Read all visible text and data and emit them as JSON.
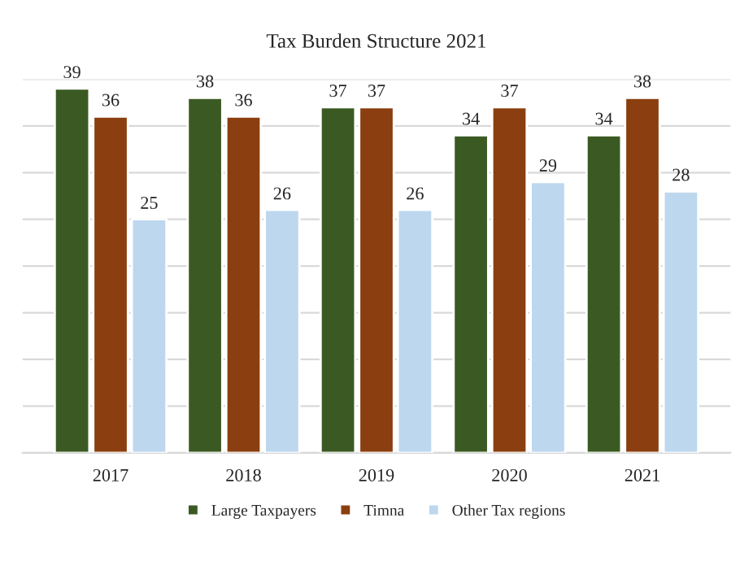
{
  "chart_data": {
    "type": "bar",
    "title": "Tax Burden Structure 2021",
    "categories": [
      "2017",
      "2018",
      "2019",
      "2020",
      "2021"
    ],
    "series": [
      {
        "name": "Large Taxpayers",
        "color": "#3b5a23",
        "values": [
          39,
          38,
          37,
          34,
          34
        ]
      },
      {
        "name": "Timna",
        "color": "#8b3e0f",
        "values": [
          36,
          36,
          37,
          37,
          38
        ]
      },
      {
        "name": "Other Tax regions",
        "color": "#bdd7ee",
        "values": [
          25,
          26,
          26,
          29,
          28
        ]
      }
    ],
    "ylim": [
      0,
      40
    ],
    "yticks": [
      {
        "value": 0,
        "label": null
      },
      {
        "value": 5,
        "label": null
      },
      {
        "value": 10,
        "label": null
      },
      {
        "value": 15,
        "label": null
      },
      {
        "value": 20,
        "label": null
      },
      {
        "value": 25,
        "label": null
      },
      {
        "value": 30,
        "label": null
      },
      {
        "value": 35,
        "label": null
      },
      {
        "value": 40,
        "label": null
      }
    ],
    "tick_labels": "x",
    "grid": "y",
    "data_labels": true,
    "legend": "bottom"
  }
}
